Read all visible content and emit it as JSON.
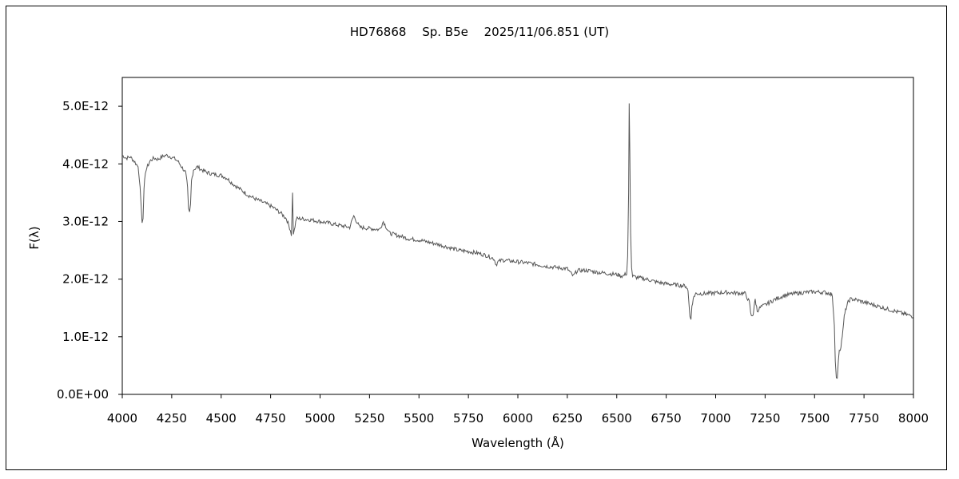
{
  "chart_data": {
    "type": "line",
    "title": "HD76868　 Sp. B5e　 2025/11/06.851 (UT)",
    "xlabel": "Wavelength (Å)",
    "ylabel": "F(λ)",
    "xlim": [
      4000,
      8000
    ],
    "ylim": [
      0,
      5.5e-12
    ],
    "x_ticks": [
      4000,
      4250,
      4500,
      4750,
      5000,
      5250,
      5500,
      5750,
      6000,
      6250,
      6500,
      6750,
      7000,
      7250,
      7500,
      7750,
      8000
    ],
    "x_tick_labels": [
      "4000",
      "4250",
      "4500",
      "4750",
      "5000",
      "5250",
      "5500",
      "5750",
      "6000",
      "6250",
      "6500",
      "6750",
      "7000",
      "7250",
      "7500",
      "7750",
      "8000"
    ],
    "y_ticks": [
      0,
      1e-12,
      2e-12,
      3e-12,
      4e-12,
      5e-12
    ],
    "y_tick_labels": [
      "0.0E+00",
      "1.0E-12",
      "2.0E-12",
      "3.0E-12",
      "4.0E-12",
      "5.0E-12"
    ],
    "grid": false,
    "series_color": "#555555",
    "series": [
      {
        "name": "",
        "x": [
          4000,
          4020,
          4040,
          4060,
          4080,
          4090,
          4100,
          4105,
          4110,
          4120,
          4140,
          4160,
          4180,
          4200,
          4220,
          4240,
          4260,
          4280,
          4300,
          4320,
          4330,
          4335,
          4340,
          4345,
          4350,
          4360,
          4380,
          4400,
          4430,
          4460,
          4500,
          4530,
          4560,
          4600,
          4640,
          4680,
          4720,
          4760,
          4800,
          4830,
          4850,
          4855,
          4861,
          4865,
          4870,
          4880,
          4900,
          4950,
          5000,
          5050,
          5100,
          5150,
          5170,
          5200,
          5250,
          5300,
          5320,
          5350,
          5400,
          5450,
          5500,
          5550,
          5600,
          5650,
          5700,
          5750,
          5800,
          5850,
          5880,
          5890,
          5900,
          5920,
          5950,
          6000,
          6050,
          6100,
          6150,
          6200,
          6250,
          6280,
          6300,
          6350,
          6400,
          6450,
          6500,
          6530,
          6550,
          6555,
          6560,
          6563,
          6566,
          6570,
          6575,
          6580,
          6600,
          6650,
          6700,
          6750,
          6800,
          6850,
          6860,
          6870,
          6875,
          6880,
          6890,
          6900,
          6950,
          7000,
          7050,
          7100,
          7150,
          7170,
          7180,
          7190,
          7200,
          7210,
          7230,
          7250,
          7300,
          7350,
          7400,
          7450,
          7500,
          7550,
          7580,
          7590,
          7600,
          7605,
          7610,
          7615,
          7620,
          7625,
          7630,
          7640,
          7650,
          7660,
          7670,
          7680,
          7700,
          7750,
          7800,
          7850,
          7900,
          7950,
          8000
        ],
        "values": [
          4.15e-12,
          4.1e-12,
          4.12e-12,
          4.05e-12,
          3.95e-12,
          3.6e-12,
          3e-12,
          3.05e-12,
          3.6e-12,
          3.9e-12,
          4.05e-12,
          4.1e-12,
          4.08e-12,
          4.12e-12,
          4.15e-12,
          4.13e-12,
          4.1e-12,
          4.05e-12,
          3.95e-12,
          3.85e-12,
          3.6e-12,
          3.2e-12,
          3.15e-12,
          3.3e-12,
          3.7e-12,
          3.9e-12,
          3.95e-12,
          3.9e-12,
          3.85e-12,
          3.82e-12,
          3.8e-12,
          3.75e-12,
          3.65e-12,
          3.55e-12,
          3.45e-12,
          3.38e-12,
          3.32e-12,
          3.25e-12,
          3.15e-12,
          3.05e-12,
          2.85e-12,
          2.75e-12,
          3.5e-12,
          2.8e-12,
          2.85e-12,
          3.05e-12,
          3.05e-12,
          3.03e-12,
          3e-12,
          2.97e-12,
          2.93e-12,
          2.9e-12,
          3.1e-12,
          2.9e-12,
          2.88e-12,
          2.86e-12,
          3e-12,
          2.8e-12,
          2.75e-12,
          2.7e-12,
          2.68e-12,
          2.64e-12,
          2.6e-12,
          2.55e-12,
          2.5e-12,
          2.48e-12,
          2.45e-12,
          2.4e-12,
          2.35e-12,
          2.25e-12,
          2.3e-12,
          2.33e-12,
          2.32e-12,
          2.3e-12,
          2.28e-12,
          2.25e-12,
          2.22e-12,
          2.2e-12,
          2.18e-12,
          2.05e-12,
          2.15e-12,
          2.15e-12,
          2.12e-12,
          2.1e-12,
          2.08e-12,
          2.05e-12,
          2.1e-12,
          2.4e-12,
          3.5e-12,
          5.05e-12,
          4.2e-12,
          2.8e-12,
          2.2e-12,
          2.05e-12,
          2.03e-12,
          2e-12,
          1.95e-12,
          1.92e-12,
          1.9e-12,
          1.88e-12,
          1.8e-12,
          1.35e-12,
          1.3e-12,
          1.55e-12,
          1.7e-12,
          1.75e-12,
          1.75e-12,
          1.76e-12,
          1.77e-12,
          1.76e-12,
          1.75e-12,
          1.6e-12,
          1.35e-12,
          1.4e-12,
          1.65e-12,
          1.45e-12,
          1.52e-12,
          1.55e-12,
          1.65e-12,
          1.72e-12,
          1.75e-12,
          1.77e-12,
          1.78e-12,
          1.77e-12,
          1.75e-12,
          1.7e-12,
          1.2e-12,
          6e-13,
          3e-13,
          2.8e-13,
          6e-13,
          8e-13,
          7.5e-13,
          1e-12,
          1.35e-12,
          1.5e-12,
          1.6e-12,
          1.65e-12,
          1.65e-12,
          1.6e-12,
          1.55e-12,
          1.5e-12,
          1.45e-12,
          1.4e-12,
          1.35e-12
        ]
      }
    ]
  }
}
